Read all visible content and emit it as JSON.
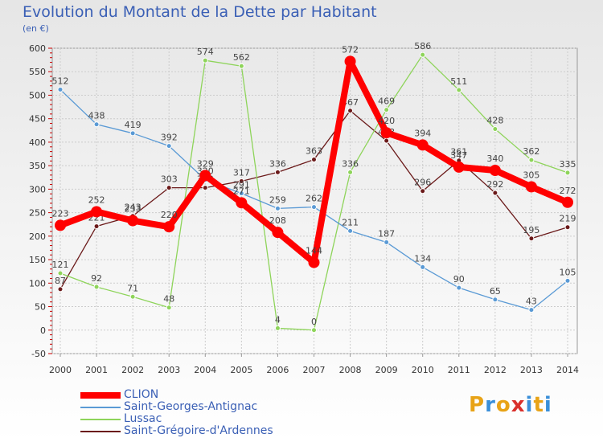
{
  "title": "Evolution du Montant de la Dette par Habitant",
  "subtitle": "(en €)",
  "logo": {
    "text": "Proxiti",
    "colors": [
      "#e8a317",
      "#3a8fd9",
      "#e8a317",
      "#d9302c",
      "#3a8fd9",
      "#e8a317",
      "#3a8fd9"
    ]
  },
  "chart_data": {
    "type": "line",
    "x": [
      "2000",
      "2001",
      "2002",
      "2003",
      "2004",
      "2005",
      "2006",
      "2007",
      "2008",
      "2009",
      "2010",
      "2011",
      "2012",
      "2013",
      "2014"
    ],
    "ylim": [
      -50,
      600
    ],
    "yticks": [
      -50,
      0,
      50,
      100,
      150,
      200,
      250,
      300,
      350,
      400,
      450,
      500,
      550,
      600
    ],
    "grid": true,
    "legend_position": "bottom-left",
    "series": [
      {
        "name": "Saint-Grégoire-d'Ardennes",
        "color": "#6b1a1a",
        "values": [
          87,
          221,
          243,
          303,
          303,
          317,
          336,
          363,
          467,
          403,
          296,
          361,
          292,
          195,
          219
        ]
      },
      {
        "name": "Lussac",
        "color": "#8ed45a",
        "values": [
          121,
          92,
          71,
          48,
          574,
          562,
          4,
          0,
          336,
          469,
          586,
          511,
          428,
          362,
          335
        ]
      },
      {
        "name": "Saint-Georges-Antignac",
        "color": "#5a9ad5",
        "values": [
          512,
          438,
          419,
          392,
          320,
          291,
          259,
          262,
          211,
          187,
          134,
          90,
          65,
          43,
          105
        ]
      },
      {
        "name": "CLION",
        "color": "#ff0000",
        "values": [
          223,
          252,
          233,
          220,
          329,
          271,
          208,
          144,
          572,
          420,
          394,
          347,
          340,
          305,
          272
        ]
      }
    ]
  },
  "legend": [
    {
      "label": "CLION",
      "color": "#ff0000",
      "thick": true
    },
    {
      "label": "Saint-Georges-Antignac",
      "color": "#5a9ad5",
      "thick": false
    },
    {
      "label": "Lussac",
      "color": "#8ed45a",
      "thick": false
    },
    {
      "label": "Saint-Grégoire-d'Ardennes",
      "color": "#6b1a1a",
      "thick": false
    }
  ]
}
